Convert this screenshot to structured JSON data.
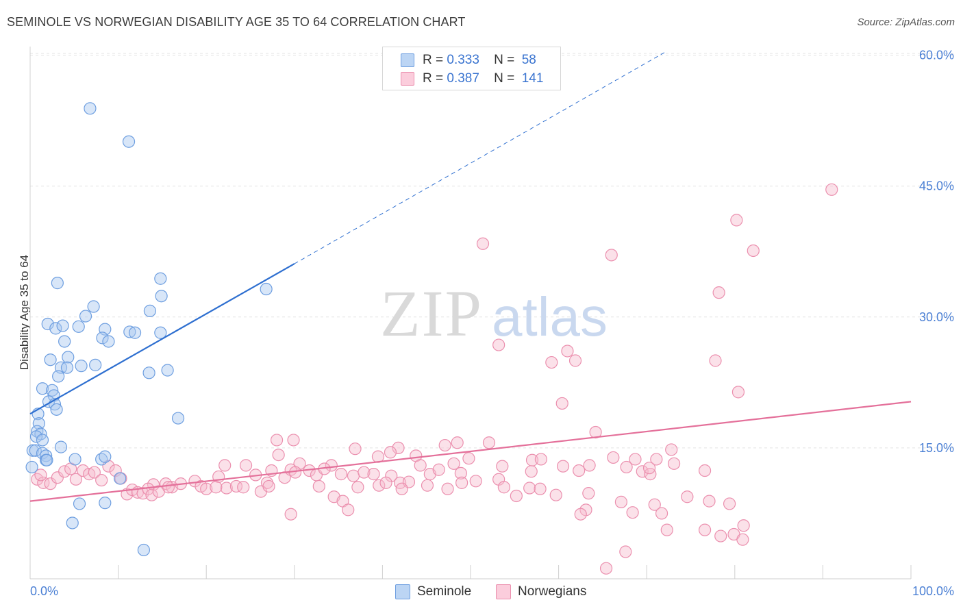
{
  "header": {
    "title": "SEMINOLE VS NORWEGIAN DISABILITY AGE 35 TO 64 CORRELATION CHART",
    "source": "Source: ZipAtlas.com"
  },
  "watermark": {
    "zip": "ZIP",
    "atlas": "atlas"
  },
  "legend": {
    "rows": [
      {
        "r_label": "R =",
        "r_value": "0.333",
        "n_label": "N =",
        "n_value": "58"
      },
      {
        "r_label": "R =",
        "r_value": "0.387",
        "n_label": "N =",
        "n_value": "141"
      }
    ]
  },
  "bottom_legend": {
    "seminole": "Seminole",
    "norwegians": "Norwegians"
  },
  "colors": {
    "seminole_fill": "#a9c8ef",
    "seminole_stroke": "#6d9ee0",
    "seminole_line": "#2e6fd0",
    "norwegians_fill": "#f6bccf",
    "norwegians_stroke": "#eb8fae",
    "norwegians_line": "#e4709a",
    "tick": "#4a7fd4",
    "grid": "#e3e3e3"
  },
  "chart_data": {
    "type": "scatter",
    "title": "SEMINOLE VS NORWEGIAN DISABILITY AGE 35 TO 64 CORRELATION CHART",
    "xlabel": "",
    "ylabel": "Disability Age 35 to 64",
    "xlim": [
      0,
      100
    ],
    "ylim": [
      0,
      61
    ],
    "x_tick_labels": [
      "0.0%",
      "100.0%"
    ],
    "y_ticks": [
      15,
      30,
      45,
      60
    ],
    "y_tick_labels": [
      "15.0%",
      "30.0%",
      "45.0%",
      "60.0%"
    ],
    "legend_placement": "top-center",
    "series": [
      {
        "name": "Seminole",
        "R": 0.333,
        "N": 58,
        "trend": {
          "x0": 0,
          "y0": 18.9,
          "x1": 30,
          "y1": 36.1,
          "dashed_to_x": 72,
          "dashed_to_y": 60.3
        },
        "points": [
          [
            6.8,
            53.9
          ],
          [
            11.2,
            50.1
          ],
          [
            3.1,
            33.9
          ],
          [
            14.8,
            34.4
          ],
          [
            14.9,
            32.4
          ],
          [
            26.8,
            33.2
          ],
          [
            7.2,
            31.2
          ],
          [
            2.0,
            29.2
          ],
          [
            2.9,
            28.7
          ],
          [
            3.7,
            29.0
          ],
          [
            6.3,
            30.1
          ],
          [
            5.5,
            28.9
          ],
          [
            8.5,
            28.6
          ],
          [
            11.3,
            28.3
          ],
          [
            11.9,
            28.2
          ],
          [
            14.8,
            28.2
          ],
          [
            8.2,
            27.6
          ],
          [
            3.9,
            27.2
          ],
          [
            8.9,
            27.2
          ],
          [
            13.6,
            30.7
          ],
          [
            2.3,
            25.1
          ],
          [
            4.3,
            25.4
          ],
          [
            3.5,
            24.2
          ],
          [
            4.2,
            24.2
          ],
          [
            5.8,
            24.4
          ],
          [
            7.4,
            24.5
          ],
          [
            13.5,
            23.6
          ],
          [
            15.6,
            23.9
          ],
          [
            3.2,
            23.2
          ],
          [
            1.4,
            21.8
          ],
          [
            2.5,
            21.6
          ],
          [
            2.7,
            21.0
          ],
          [
            2.1,
            20.3
          ],
          [
            2.8,
            20.0
          ],
          [
            3.0,
            19.4
          ],
          [
            0.9,
            18.9
          ],
          [
            16.8,
            18.4
          ],
          [
            1.0,
            17.8
          ],
          [
            0.8,
            16.9
          ],
          [
            1.2,
            16.6
          ],
          [
            0.7,
            16.3
          ],
          [
            1.4,
            15.9
          ],
          [
            3.5,
            15.1
          ],
          [
            0.3,
            14.7
          ],
          [
            0.6,
            14.7
          ],
          [
            1.4,
            14.4
          ],
          [
            1.8,
            14.1
          ],
          [
            1.8,
            13.6
          ],
          [
            1.9,
            13.6
          ],
          [
            5.1,
            13.7
          ],
          [
            8.1,
            13.7
          ],
          [
            8.5,
            14.0
          ],
          [
            10.2,
            11.5
          ],
          [
            0.2,
            12.8
          ],
          [
            5.6,
            8.6
          ],
          [
            8.5,
            8.7
          ],
          [
            4.8,
            6.4
          ],
          [
            12.9,
            3.3
          ]
        ]
      },
      {
        "name": "Norwegians",
        "R": 0.387,
        "N": 141,
        "trend": {
          "x0": 0,
          "y0": 8.9,
          "x1": 100,
          "y1": 20.3
        },
        "points": [
          [
            91.0,
            44.6
          ],
          [
            80.2,
            41.1
          ],
          [
            82.1,
            37.6
          ],
          [
            51.4,
            38.4
          ],
          [
            66.0,
            37.1
          ],
          [
            78.2,
            32.8
          ],
          [
            53.2,
            26.8
          ],
          [
            61.0,
            26.1
          ],
          [
            59.2,
            24.8
          ],
          [
            61.9,
            25.0
          ],
          [
            77.8,
            25.0
          ],
          [
            80.4,
            21.4
          ],
          [
            60.4,
            20.1
          ],
          [
            72.8,
            14.8
          ],
          [
            64.2,
            16.8
          ],
          [
            48.5,
            15.6
          ],
          [
            52.1,
            15.6
          ],
          [
            28.0,
            15.9
          ],
          [
            29.9,
            15.9
          ],
          [
            41.8,
            15.0
          ],
          [
            36.9,
            14.9
          ],
          [
            47.1,
            15.3
          ],
          [
            40.9,
            14.5
          ],
          [
            39.5,
            14.0
          ],
          [
            43.8,
            14.1
          ],
          [
            49.8,
            13.8
          ],
          [
            57.0,
            13.6
          ],
          [
            58.0,
            13.7
          ],
          [
            66.2,
            13.9
          ],
          [
            71.1,
            13.7
          ],
          [
            22.1,
            13.0
          ],
          [
            24.5,
            13.0
          ],
          [
            28.2,
            14.2
          ],
          [
            30.6,
            13.2
          ],
          [
            34.2,
            13.0
          ],
          [
            44.3,
            13.0
          ],
          [
            48.1,
            13.2
          ],
          [
            53.6,
            12.9
          ],
          [
            69.5,
            12.3
          ],
          [
            70.4,
            12.0
          ],
          [
            76.6,
            12.4
          ],
          [
            14.0,
            10.8
          ],
          [
            15.4,
            10.9
          ],
          [
            16.1,
            10.5
          ],
          [
            17.1,
            10.9
          ],
          [
            18.7,
            11.2
          ],
          [
            19.4,
            10.6
          ],
          [
            21.4,
            11.7
          ],
          [
            22.3,
            10.4
          ],
          [
            23.4,
            10.6
          ],
          [
            24.2,
            10.5
          ],
          [
            25.6,
            11.9
          ],
          [
            26.9,
            11.0
          ],
          [
            27.4,
            12.4
          ],
          [
            28.9,
            11.6
          ],
          [
            29.6,
            12.5
          ],
          [
            30.1,
            12.2
          ],
          [
            31.7,
            12.4
          ],
          [
            32.5,
            11.9
          ],
          [
            33.4,
            12.6
          ],
          [
            35.3,
            12.0
          ],
          [
            36.7,
            11.8
          ],
          [
            37.9,
            12.2
          ],
          [
            39.0,
            12.0
          ],
          [
            41.0,
            11.8
          ],
          [
            42.0,
            11.0
          ],
          [
            43.0,
            11.1
          ],
          [
            45.4,
            12.0
          ],
          [
            46.4,
            12.5
          ],
          [
            48.9,
            12.1
          ],
          [
            50.6,
            11.2
          ],
          [
            53.2,
            11.4
          ],
          [
            56.9,
            12.3
          ],
          [
            60.5,
            12.9
          ],
          [
            62.3,
            12.4
          ],
          [
            63.5,
            13.0
          ],
          [
            67.7,
            12.8
          ],
          [
            68.7,
            13.7
          ],
          [
            70.3,
            12.7
          ],
          [
            73.1,
            13.2
          ],
          [
            11.0,
            9.7
          ],
          [
            11.6,
            10.2
          ],
          [
            12.2,
            9.9
          ],
          [
            12.8,
            9.8
          ],
          [
            13.4,
            10.3
          ],
          [
            13.8,
            9.6
          ],
          [
            14.6,
            10.0
          ],
          [
            15.7,
            10.5
          ],
          [
            20.0,
            10.3
          ],
          [
            21.1,
            10.5
          ],
          [
            26.2,
            10.0
          ],
          [
            27.1,
            10.6
          ],
          [
            32.8,
            10.6
          ],
          [
            34.5,
            9.4
          ],
          [
            35.5,
            8.9
          ],
          [
            37.2,
            10.5
          ],
          [
            39.6,
            10.7
          ],
          [
            40.4,
            11.0
          ],
          [
            42.2,
            10.3
          ],
          [
            45.1,
            10.7
          ],
          [
            47.4,
            10.3
          ],
          [
            49.0,
            11.0
          ],
          [
            53.8,
            10.5
          ],
          [
            55.2,
            9.5
          ],
          [
            56.7,
            10.4
          ],
          [
            57.9,
            10.3
          ],
          [
            59.7,
            9.6
          ],
          [
            63.4,
            9.8
          ],
          [
            67.1,
            8.8
          ],
          [
            70.9,
            8.5
          ],
          [
            74.6,
            9.4
          ],
          [
            77.1,
            8.9
          ],
          [
            79.4,
            8.6
          ],
          [
            63.1,
            7.9
          ],
          [
            68.4,
            7.6
          ],
          [
            71.7,
            7.5
          ],
          [
            72.3,
            5.6
          ],
          [
            76.6,
            5.6
          ],
          [
            78.4,
            4.9
          ],
          [
            29.6,
            7.4
          ],
          [
            36.1,
            7.9
          ],
          [
            62.5,
            7.4
          ],
          [
            81.0,
            6.1
          ],
          [
            79.9,
            5.1
          ],
          [
            80.9,
            4.5
          ],
          [
            65.4,
            1.2
          ],
          [
            67.6,
            3.1
          ],
          [
            0.8,
            11.4
          ],
          [
            1.5,
            11.0
          ],
          [
            2.3,
            10.9
          ],
          [
            3.1,
            11.6
          ],
          [
            3.9,
            12.3
          ],
          [
            4.6,
            12.6
          ],
          [
            5.2,
            11.4
          ],
          [
            6.0,
            12.4
          ],
          [
            6.7,
            12.0
          ],
          [
            7.3,
            12.2
          ],
          [
            8.1,
            11.3
          ],
          [
            8.9,
            12.9
          ],
          [
            9.7,
            12.4
          ],
          [
            10.3,
            11.5
          ],
          [
            1.2,
            11.9
          ]
        ]
      }
    ]
  }
}
